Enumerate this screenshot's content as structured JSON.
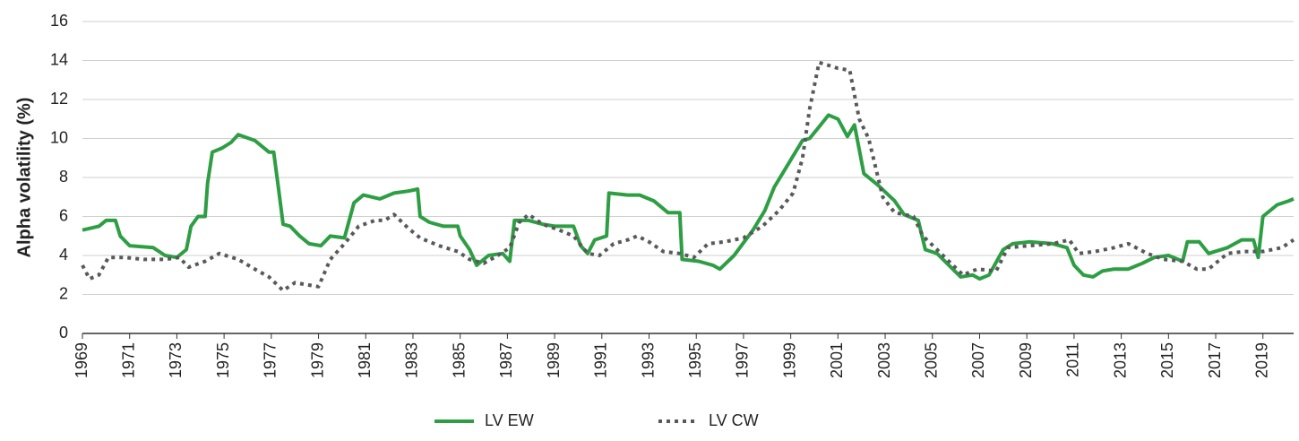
{
  "chart_data": {
    "type": "line",
    "y_label": "Alpha volatility (%)",
    "xlim": [
      1969,
      2020.3
    ],
    "xticks": [
      1969,
      1971,
      1973,
      1975,
      1977,
      1979,
      1981,
      1983,
      1985,
      1987,
      1989,
      1991,
      1993,
      1995,
      1997,
      1999,
      2001,
      2003,
      2005,
      2007,
      2009,
      2011,
      2013,
      2015,
      2017,
      2019
    ],
    "ylim": [
      0,
      16
    ],
    "yticks": [
      0,
      2,
      4,
      6,
      8,
      10,
      12,
      14,
      16
    ],
    "grid": true,
    "legend": "bottom",
    "series": [
      {
        "name": "LV EW",
        "color": "#2e9e44",
        "dash": false,
        "x": [
          1969.0,
          1969.7,
          1970.0,
          1970.4,
          1970.6,
          1971.0,
          1972.0,
          1972.5,
          1973.0,
          1973.4,
          1973.6,
          1973.9,
          1974.2,
          1974.3,
          1974.5,
          1974.9,
          1975.3,
          1975.6,
          1976.3,
          1976.9,
          1977.1,
          1977.3,
          1977.5,
          1977.8,
          1978.2,
          1978.6,
          1979.1,
          1979.5,
          1980.1,
          1980.5,
          1980.9,
          1981.6,
          1982.2,
          1982.8,
          1983.2,
          1983.3,
          1983.7,
          1984.3,
          1984.9,
          1985.0,
          1985.4,
          1985.7,
          1986.2,
          1986.8,
          1987.1,
          1987.3,
          1987.9,
          1988.5,
          1989.0,
          1989.8,
          1990.1,
          1990.4,
          1990.7,
          1991.2,
          1991.3,
          1992.1,
          1992.6,
          1993.2,
          1993.8,
          1994.3,
          1994.4,
          1995.1,
          1995.7,
          1996.0,
          1996.6,
          1997.4,
          1997.9,
          1998.3,
          1998.9,
          1999.5,
          1999.8,
          2000.2,
          2000.6,
          2001.0,
          2001.4,
          2001.7,
          2002.1,
          2002.7,
          2003.4,
          2003.8,
          2004.4,
          2004.7,
          2005.2,
          2005.7,
          2006.2,
          2006.7,
          2007.0,
          2007.4,
          2008.0,
          2008.4,
          2009.1,
          2010.1,
          2010.7,
          2011.0,
          2011.4,
          2011.8,
          2012.2,
          2012.7,
          2013.3,
          2013.9,
          2014.4,
          2015.0,
          2015.6,
          2015.8,
          2016.3,
          2016.7,
          2017.5,
          2018.1,
          2018.6,
          2018.8,
          2019.0,
          2019.6,
          2020.1,
          2020.3
        ],
        "values": [
          5.3,
          5.5,
          5.8,
          5.8,
          5.0,
          4.5,
          4.4,
          4.0,
          3.9,
          4.3,
          5.5,
          6.0,
          6.0,
          7.7,
          9.3,
          9.5,
          9.8,
          10.2,
          9.9,
          9.3,
          9.3,
          7.5,
          5.6,
          5.5,
          5.0,
          4.6,
          4.5,
          5.0,
          4.9,
          6.7,
          7.1,
          6.9,
          7.2,
          7.3,
          7.4,
          6.0,
          5.7,
          5.5,
          5.5,
          5.0,
          4.3,
          3.5,
          4.0,
          4.1,
          3.7,
          5.8,
          5.8,
          5.6,
          5.5,
          5.5,
          4.5,
          4.1,
          4.8,
          5.0,
          7.2,
          7.1,
          7.1,
          6.8,
          6.2,
          6.2,
          3.8,
          3.7,
          3.5,
          3.3,
          4.0,
          5.3,
          6.3,
          7.5,
          8.7,
          9.9,
          10.0,
          10.6,
          11.2,
          11.0,
          10.1,
          10.7,
          8.2,
          7.6,
          6.8,
          6.1,
          5.8,
          4.3,
          4.1,
          3.5,
          2.9,
          3.0,
          2.8,
          3.0,
          4.3,
          4.6,
          4.7,
          4.6,
          4.4,
          3.5,
          3.0,
          2.9,
          3.2,
          3.3,
          3.3,
          3.6,
          3.9,
          4.0,
          3.7,
          4.7,
          4.7,
          4.1,
          4.4,
          4.8,
          4.8,
          3.9,
          6.0,
          6.6,
          6.8,
          6.9
        ]
      },
      {
        "name": "LV CW",
        "color": "#58595b",
        "dash": true,
        "x": [
          1969.0,
          1969.3,
          1969.7,
          1970.1,
          1970.8,
          1971.6,
          1972.5,
          1973.1,
          1973.5,
          1974.2,
          1974.8,
          1975.6,
          1976.3,
          1976.9,
          1977.5,
          1978.0,
          1979.0,
          1979.5,
          1980.1,
          1980.7,
          1981.4,
          1981.8,
          1982.2,
          1982.8,
          1983.3,
          1984.1,
          1984.9,
          1985.4,
          1986.0,
          1986.6,
          1987.1,
          1987.5,
          1987.9,
          1988.5,
          1989.2,
          1989.8,
          1990.4,
          1990.9,
          1991.5,
          1992.1,
          1992.5,
          1993.0,
          1993.6,
          1994.3,
          1994.9,
          1995.5,
          1996.2,
          1997.0,
          1997.8,
          1998.5,
          1999.1,
          1999.5,
          1999.8,
          2000.2,
          2001.0,
          2001.5,
          2001.9,
          2002.3,
          2002.9,
          2003.4,
          2004.2,
          2004.6,
          2005.2,
          2005.7,
          2006.3,
          2006.9,
          2007.7,
          2008.2,
          2009.1,
          2010.1,
          2010.8,
          2011.2,
          2011.9,
          2012.7,
          2013.3,
          2014.1,
          2014.8,
          2015.6,
          2016.2,
          2016.7,
          2017.5,
          2018.2,
          2019.0,
          2019.8,
          2020.3
        ],
        "values": [
          3.5,
          2.8,
          3.0,
          3.9,
          3.9,
          3.8,
          3.8,
          3.9,
          3.4,
          3.7,
          4.1,
          3.8,
          3.3,
          2.9,
          2.2,
          2.6,
          2.4,
          3.8,
          4.6,
          5.5,
          5.8,
          5.8,
          6.1,
          5.4,
          4.9,
          4.5,
          4.2,
          3.8,
          3.6,
          4.0,
          4.4,
          5.7,
          6.1,
          5.6,
          5.3,
          5.0,
          4.1,
          4.0,
          4.6,
          4.8,
          5.0,
          4.7,
          4.2,
          4.1,
          3.9,
          4.6,
          4.7,
          4.9,
          5.5,
          6.3,
          7.2,
          9.0,
          11.5,
          13.9,
          13.6,
          13.5,
          11.0,
          10.0,
          7.0,
          6.2,
          6.0,
          5.0,
          4.3,
          3.7,
          3.0,
          3.3,
          3.2,
          4.4,
          4.5,
          4.6,
          4.8,
          4.1,
          4.2,
          4.4,
          4.6,
          4.1,
          3.8,
          3.7,
          3.3,
          3.3,
          4.1,
          4.2,
          4.2,
          4.4,
          4.8
        ]
      }
    ]
  }
}
